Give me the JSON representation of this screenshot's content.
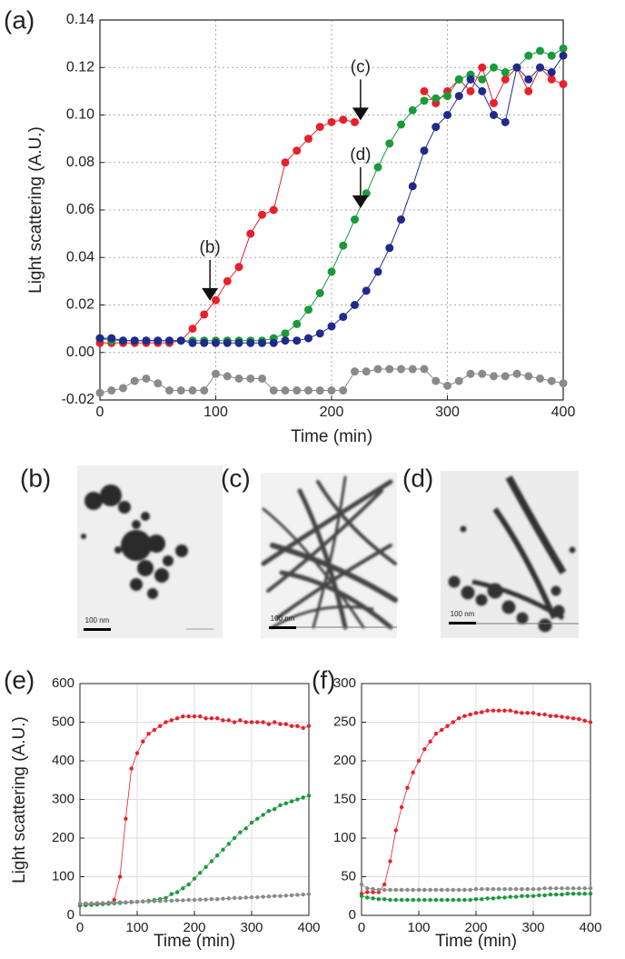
{
  "chart_data": [
    {
      "type": "line",
      "panel_label": "(a)",
      "x_label": "Time (min)",
      "y_label": "Light scattering (A.U.)",
      "xlim": [
        0,
        400
      ],
      "xticks": [
        0,
        100,
        200,
        300,
        400
      ],
      "ylim": [
        -0.02,
        0.14
      ],
      "yticks": [
        -0.02,
        {
          "value": 0,
          "label": "0.00"
        },
        0.02,
        0.04,
        0.06,
        0.08,
        {
          "value": 0.1,
          "label": "0.10"
        },
        0.12,
        0.14
      ],
      "grid": true,
      "x": [
        0,
        10,
        20,
        30,
        40,
        50,
        60,
        70,
        80,
        90,
        100,
        110,
        120,
        130,
        140,
        150,
        160,
        170,
        180,
        190,
        200,
        210,
        220,
        230,
        240,
        250,
        260,
        270,
        280,
        290,
        300,
        310,
        320,
        330,
        340,
        350,
        360,
        370,
        380,
        390,
        400
      ],
      "series": [
        {
          "color": "#e8202a",
          "values": [
            0.004,
            0.004,
            0.004,
            0.004,
            0.004,
            0.004,
            0.004,
            0.005,
            0.01,
            0.016,
            0.022,
            0.03,
            0.036,
            0.05,
            0.058,
            0.06,
            0.08,
            0.085,
            0.09,
            0.095,
            0.097,
            0.098,
            0.097,
            null,
            null,
            null,
            null,
            null,
            0.11,
            0.105,
            0.11,
            0.115,
            0.11,
            0.12,
            0.105,
            0.115,
            0.12,
            0.11,
            0.12,
            0.115,
            0.113
          ]
        },
        {
          "color": "#1a9a3a",
          "values": [
            0.006,
            0.005,
            0.005,
            0.005,
            0.005,
            0.005,
            0.005,
            0.005,
            0.005,
            0.005,
            0.005,
            0.005,
            0.005,
            0.005,
            0.005,
            0.006,
            0.008,
            0.012,
            0.018,
            0.025,
            0.034,
            0.045,
            0.056,
            0.067,
            0.078,
            0.088,
            0.096,
            0.102,
            0.106,
            0.107,
            0.108,
            0.115,
            0.117,
            0.115,
            0.12,
            0.118,
            0.12,
            0.125,
            0.127,
            0.125,
            0.128
          ]
        },
        {
          "color": "#1f2a8a",
          "values": [
            0.006,
            0.006,
            0.005,
            0.005,
            0.005,
            0.005,
            0.005,
            0.005,
            0.004,
            0.004,
            0.004,
            0.004,
            0.004,
            0.004,
            0.004,
            0.004,
            0.005,
            0.005,
            0.006,
            0.008,
            0.011,
            0.015,
            0.02,
            0.026,
            0.034,
            0.044,
            0.056,
            0.07,
            0.085,
            0.095,
            0.1,
            0.108,
            0.115,
            0.11,
            0.1,
            0.097,
            0.12,
            0.115,
            0.12,
            0.118,
            0.125
          ]
        },
        {
          "color": "#8a8a8a",
          "values": [
            -0.017,
            -0.016,
            -0.015,
            -0.012,
            -0.011,
            -0.013,
            -0.016,
            -0.016,
            -0.016,
            -0.016,
            -0.009,
            -0.01,
            -0.011,
            -0.011,
            -0.011,
            -0.016,
            -0.016,
            -0.016,
            -0.016,
            -0.016,
            -0.016,
            -0.016,
            -0.008,
            -0.008,
            -0.007,
            -0.007,
            -0.007,
            -0.007,
            -0.007,
            -0.012,
            -0.014,
            -0.012,
            -0.009,
            -0.009,
            -0.01,
            -0.01,
            -0.009,
            -0.01,
            -0.011,
            -0.012,
            -0.013
          ]
        }
      ],
      "annotations": [
        {
          "text": "(b)",
          "x": 95,
          "y": 0.021
        },
        {
          "text": "(c)",
          "x": 225,
          "y": 0.097
        },
        {
          "text": "(d)",
          "x": 225,
          "y": 0.06
        }
      ]
    },
    {
      "type": "line",
      "panel_label": "(e)",
      "x_label": "Time (min)",
      "y_label": "Light scattering (A.U.)",
      "xlim": [
        0,
        400
      ],
      "xticks": [
        0,
        100,
        200,
        300,
        400
      ],
      "ylim": [
        0,
        600
      ],
      "yticks": [
        0,
        100,
        200,
        300,
        400,
        500,
        600
      ],
      "grid": true,
      "x": [
        0,
        10,
        20,
        30,
        40,
        50,
        60,
        70,
        80,
        90,
        100,
        110,
        120,
        130,
        140,
        150,
        160,
        170,
        180,
        190,
        200,
        210,
        220,
        230,
        240,
        250,
        260,
        270,
        280,
        290,
        300,
        310,
        320,
        330,
        340,
        350,
        360,
        370,
        380,
        390,
        400
      ],
      "series": [
        {
          "color": "#e8202a",
          "values": [
            30,
            30,
            30,
            30,
            30,
            30,
            40,
            100,
            250,
            380,
            420,
            450,
            470,
            480,
            490,
            500,
            505,
            510,
            515,
            515,
            515,
            515,
            510,
            510,
            510,
            505,
            505,
            500,
            505,
            500,
            500,
            500,
            500,
            495,
            500,
            495,
            495,
            490,
            490,
            485,
            490
          ]
        },
        {
          "color": "#1a9a3a",
          "values": [
            25,
            26,
            27,
            28,
            29,
            30,
            31,
            32,
            33,
            34,
            35,
            36,
            38,
            40,
            42,
            45,
            55,
            60,
            70,
            80,
            95,
            110,
            125,
            140,
            155,
            170,
            185,
            200,
            215,
            225,
            240,
            250,
            260,
            270,
            275,
            285,
            290,
            295,
            300,
            305,
            310
          ]
        },
        {
          "color": "#8a8a8a",
          "values": [
            30,
            31,
            31,
            32,
            32,
            33,
            33,
            34,
            34,
            35,
            35,
            36,
            36,
            37,
            37,
            38,
            38,
            39,
            39,
            40,
            40,
            41,
            41,
            42,
            42,
            43,
            44,
            45,
            45,
            46,
            47,
            47,
            48,
            49,
            50,
            50,
            51,
            52,
            53,
            54,
            55
          ]
        }
      ]
    },
    {
      "type": "line",
      "panel_label": "(f)",
      "x_label": "Time (min)",
      "xlim": [
        0,
        400
      ],
      "xticks": [
        0,
        100,
        200,
        300,
        400
      ],
      "ylim": [
        0,
        300
      ],
      "yticks": [
        0,
        50,
        100,
        150,
        200,
        250,
        300
      ],
      "grid": true,
      "x": [
        0,
        10,
        20,
        30,
        40,
        50,
        60,
        70,
        80,
        90,
        100,
        110,
        120,
        130,
        140,
        150,
        160,
        170,
        180,
        190,
        200,
        210,
        220,
        230,
        240,
        250,
        260,
        270,
        280,
        290,
        300,
        310,
        320,
        330,
        340,
        350,
        360,
        370,
        380,
        390,
        400
      ],
      "series": [
        {
          "color": "#e8202a",
          "values": [
            28,
            30,
            30,
            30,
            40,
            70,
            110,
            140,
            165,
            185,
            200,
            215,
            225,
            235,
            240,
            245,
            250,
            255,
            258,
            260,
            262,
            263,
            265,
            265,
            265,
            265,
            265,
            263,
            262,
            262,
            262,
            260,
            260,
            258,
            258,
            257,
            256,
            255,
            254,
            252,
            250
          ]
        },
        {
          "color": "#8a8a8a",
          "values": [
            40,
            35,
            34,
            33,
            33,
            33,
            33,
            33,
            33,
            33,
            33,
            33,
            33,
            33,
            33,
            33,
            33,
            33,
            33,
            33,
            34,
            34,
            34,
            34,
            34,
            34,
            34,
            34,
            34,
            34,
            34,
            34,
            35,
            35,
            35,
            35,
            35,
            35,
            35,
            35,
            35
          ]
        },
        {
          "color": "#1a9a3a",
          "values": [
            25,
            23,
            22,
            21,
            21,
            20,
            20,
            20,
            20,
            20,
            20,
            20,
            20,
            20,
            20,
            20,
            20,
            20,
            20,
            20,
            21,
            21,
            22,
            22,
            23,
            23,
            24,
            24,
            25,
            25,
            25,
            26,
            26,
            27,
            27,
            27,
            28,
            28,
            28,
            28,
            28
          ]
        }
      ]
    }
  ],
  "micrographs": [
    {
      "label": "(b)",
      "scale_bar": "100 nm"
    },
    {
      "label": "(c)",
      "scale_bar": "100 nm"
    },
    {
      "label": "(d)",
      "scale_bar": "100 nm"
    }
  ]
}
